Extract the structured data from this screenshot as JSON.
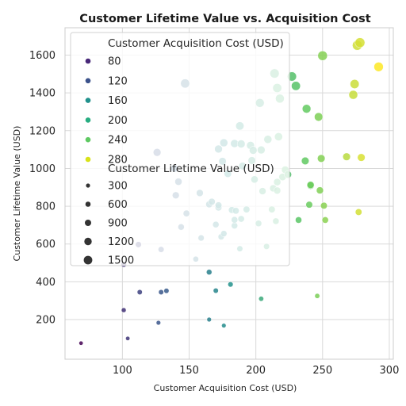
{
  "chart_data": {
    "type": "scatter",
    "title": "Customer Lifetime Value vs. Acquisition Cost",
    "xlabel": "Customer Acquisition Cost (USD)",
    "ylabel": "Customer Lifetime Value (USD)",
    "xlim": [
      57,
      303
    ],
    "ylim": [
      -10,
      1745
    ],
    "xticks": [
      100,
      150,
      200,
      250,
      300
    ],
    "yticks": [
      200,
      400,
      600,
      800,
      1000,
      1200,
      1400,
      1600
    ],
    "grid": true,
    "legend_position": "upper-left",
    "hue": {
      "title": "Customer Acquisition Cost (USD)",
      "entries": [
        {
          "label": "80",
          "color": "#482878"
        },
        {
          "label": "120",
          "color": "#3b528b"
        },
        {
          "label": "160",
          "color": "#21918c"
        },
        {
          "label": "200",
          "color": "#27ad81"
        },
        {
          "label": "240",
          "color": "#5ec962"
        },
        {
          "label": "280",
          "color": "#d8e219"
        }
      ]
    },
    "size": {
      "title": "Customer Lifetime Value (USD)",
      "entries": [
        "300",
        "600",
        "900",
        "1200",
        "1500"
      ]
    },
    "points": [
      {
        "x": 69,
        "y": 75
      },
      {
        "x": 104,
        "y": 100
      },
      {
        "x": 101,
        "y": 250
      },
      {
        "x": 127,
        "y": 183
      },
      {
        "x": 113,
        "y": 345
      },
      {
        "x": 129,
        "y": 345
      },
      {
        "x": 133,
        "y": 352
      },
      {
        "x": 165,
        "y": 200
      },
      {
        "x": 176,
        "y": 168
      },
      {
        "x": 165,
        "y": 451
      },
      {
        "x": 170,
        "y": 353
      },
      {
        "x": 181,
        "y": 386
      },
      {
        "x": 204,
        "y": 310
      },
      {
        "x": 246,
        "y": 325
      },
      {
        "x": 101,
        "y": 492
      },
      {
        "x": 112,
        "y": 597
      },
      {
        "x": 129,
        "y": 571
      },
      {
        "x": 126,
        "y": 1085
      },
      {
        "x": 147,
        "y": 1450
      },
      {
        "x": 139,
        "y": 1000
      },
      {
        "x": 140,
        "y": 858
      },
      {
        "x": 142,
        "y": 930
      },
      {
        "x": 144,
        "y": 690
      },
      {
        "x": 148,
        "y": 762
      },
      {
        "x": 155,
        "y": 520
      },
      {
        "x": 158,
        "y": 870
      },
      {
        "x": 159,
        "y": 632
      },
      {
        "x": 165,
        "y": 810
      },
      {
        "x": 167,
        "y": 824
      },
      {
        "x": 170,
        "y": 703
      },
      {
        "x": 172,
        "y": 793
      },
      {
        "x": 172,
        "y": 805
      },
      {
        "x": 172,
        "y": 1103
      },
      {
        "x": 174,
        "y": 638
      },
      {
        "x": 175,
        "y": 1038
      },
      {
        "x": 176,
        "y": 655
      },
      {
        "x": 176,
        "y": 1136
      },
      {
        "x": 179,
        "y": 972
      },
      {
        "x": 182,
        "y": 780
      },
      {
        "x": 184,
        "y": 1132
      },
      {
        "x": 184,
        "y": 697
      },
      {
        "x": 184,
        "y": 728
      },
      {
        "x": 185,
        "y": 776
      },
      {
        "x": 188,
        "y": 575
      },
      {
        "x": 188,
        "y": 1225
      },
      {
        "x": 189,
        "y": 733
      },
      {
        "x": 189,
        "y": 1130
      },
      {
        "x": 190,
        "y": 1013
      },
      {
        "x": 193,
        "y": 783
      },
      {
        "x": 196,
        "y": 1122
      },
      {
        "x": 197,
        "y": 1042
      },
      {
        "x": 198,
        "y": 1096
      },
      {
        "x": 199,
        "y": 942
      },
      {
        "x": 202,
        "y": 709
      },
      {
        "x": 203,
        "y": 1347
      },
      {
        "x": 204,
        "y": 1098
      },
      {
        "x": 205,
        "y": 880
      },
      {
        "x": 208,
        "y": 587
      },
      {
        "x": 209,
        "y": 1154
      },
      {
        "x": 212,
        "y": 783
      },
      {
        "x": 213,
        "y": 895
      },
      {
        "x": 214,
        "y": 1503
      },
      {
        "x": 215,
        "y": 721
      },
      {
        "x": 216,
        "y": 1426
      },
      {
        "x": 216,
        "y": 928
      },
      {
        "x": 216,
        "y": 883
      },
      {
        "x": 217,
        "y": 1168
      },
      {
        "x": 218,
        "y": 1370
      },
      {
        "x": 220,
        "y": 955
      },
      {
        "x": 222,
        "y": 993
      },
      {
        "x": 224,
        "y": 968
      },
      {
        "x": 227,
        "y": 1487
      },
      {
        "x": 230,
        "y": 1437
      },
      {
        "x": 232,
        "y": 727
      },
      {
        "x": 237,
        "y": 1040
      },
      {
        "x": 238,
        "y": 1316
      },
      {
        "x": 240,
        "y": 808
      },
      {
        "x": 241,
        "y": 909
      },
      {
        "x": 241,
        "y": 913
      },
      {
        "x": 247,
        "y": 1273
      },
      {
        "x": 249,
        "y": 1053
      },
      {
        "x": 248,
        "y": 884
      },
      {
        "x": 250,
        "y": 1597
      },
      {
        "x": 251,
        "y": 803
      },
      {
        "x": 252,
        "y": 727
      },
      {
        "x": 268,
        "y": 1062
      },
      {
        "x": 273,
        "y": 1390
      },
      {
        "x": 274,
        "y": 1447
      },
      {
        "x": 276,
        "y": 1652
      },
      {
        "x": 277,
        "y": 769
      },
      {
        "x": 278,
        "y": 1666
      },
      {
        "x": 279,
        "y": 1058
      },
      {
        "x": 292,
        "y": 1538
      }
    ]
  }
}
